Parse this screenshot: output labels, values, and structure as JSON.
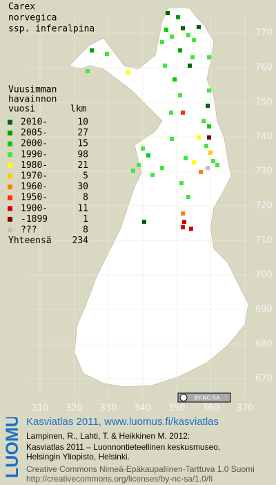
{
  "title": [
    "Carex",
    "norvegica",
    "ssp. inferalpina"
  ],
  "legend": {
    "heading": [
      "Vuusimman",
      "havainnon"
    ],
    "col_period": "vuosi",
    "col_count": "lkm",
    "rows": [
      {
        "label": "2010-",
        "count": "10",
        "color": "#006400"
      },
      {
        "label": "2005-",
        "count": "27",
        "color": "#00a000"
      },
      {
        "label": "2000-",
        "count": "15",
        "color": "#00d000"
      },
      {
        "label": "1990-",
        "count": "98",
        "color": "#40e840"
      },
      {
        "label": "1980-",
        "count": "21",
        "color": "#ffff00"
      },
      {
        "label": "1970-",
        "count": "5",
        "color": "#ffc800"
      },
      {
        "label": "1960-",
        "count": "30",
        "color": "#ff8000"
      },
      {
        "label": "1950-",
        "count": "8",
        "color": "#ff3000"
      },
      {
        "label": "1900-",
        "count": "11",
        "color": "#d00000"
      },
      {
        "label": "-1899",
        "count": "1",
        "color": "#800000"
      },
      {
        "label": "???",
        "count": "8",
        "color": "#c0c0c0"
      }
    ],
    "total_label": "Yhteensä",
    "total": "234"
  },
  "grid": {
    "northing": [
      770,
      760,
      750,
      740,
      730,
      720,
      710,
      700,
      690,
      680,
      670
    ],
    "easting": [
      310,
      320,
      330,
      340,
      350,
      360,
      370
    ]
  },
  "license_badge": "BY-NC-SA",
  "footer": {
    "logo": "LUOMUS",
    "headline": "Kasviatlas 2011, www.luomus.fi/kasviatlas",
    "citation": [
      "Lampinen, R., Lahti, T. & Heikkinen M. 2012:",
      "Kasviatlas 2011 – Luonnontieteellinen keskusmuseo,",
      "Helsingin Yliopisto, Helsinki."
    ],
    "license": [
      "Creative Commons Nimeä-Epäkaupallinen-Tarttuva 1.0 Suomi",
      "http://creativecommons.org/licenses/by-nc-sa/1.0/fi"
    ]
  }
}
